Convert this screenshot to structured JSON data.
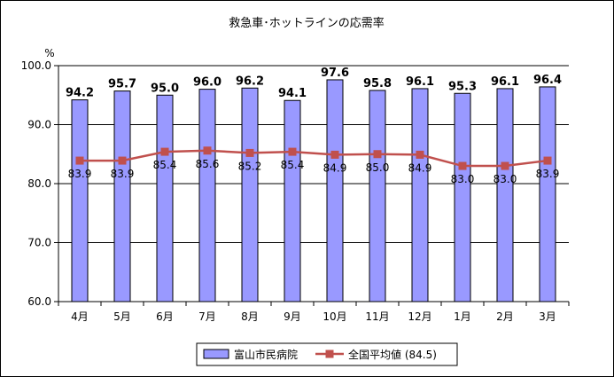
{
  "chart_data": {
    "type": "bar",
    "title": "救急車･ホットラインの応需率",
    "ylabel": "%",
    "ylim": [
      60,
      100
    ],
    "yticks": [
      "60.0",
      "70.0",
      "80.0",
      "90.0",
      "100.0"
    ],
    "categories": [
      "4月",
      "5月",
      "6月",
      "7月",
      "8月",
      "9月",
      "10月",
      "11月",
      "12月",
      "1月",
      "2月",
      "3月"
    ],
    "series": [
      {
        "name": "富山市民病院",
        "kind": "bar",
        "color": "#9999ff",
        "values": [
          94.2,
          95.7,
          95.0,
          96.0,
          96.2,
          94.1,
          97.6,
          95.8,
          96.1,
          95.3,
          96.1,
          96.4
        ],
        "labels": [
          "94.2",
          "95.7",
          "95.0",
          "96.0",
          "96.2",
          "94.1",
          "97.6",
          "95.8",
          "96.1",
          "95.3",
          "96.1",
          "96.4"
        ]
      },
      {
        "name": "全国平均値 (84.5)",
        "kind": "line",
        "color": "#c0504d",
        "values": [
          83.9,
          83.9,
          85.4,
          85.6,
          85.2,
          85.4,
          84.9,
          85.0,
          84.9,
          83.0,
          83.0,
          83.9
        ],
        "labels": [
          "83.9",
          "83.9",
          "85.4",
          "85.6",
          "85.2",
          "85.4",
          "84.9",
          "85.0",
          "84.9",
          "83.0",
          "83.0",
          "83.9"
        ]
      }
    ],
    "grid": true,
    "legend": "bottom"
  }
}
